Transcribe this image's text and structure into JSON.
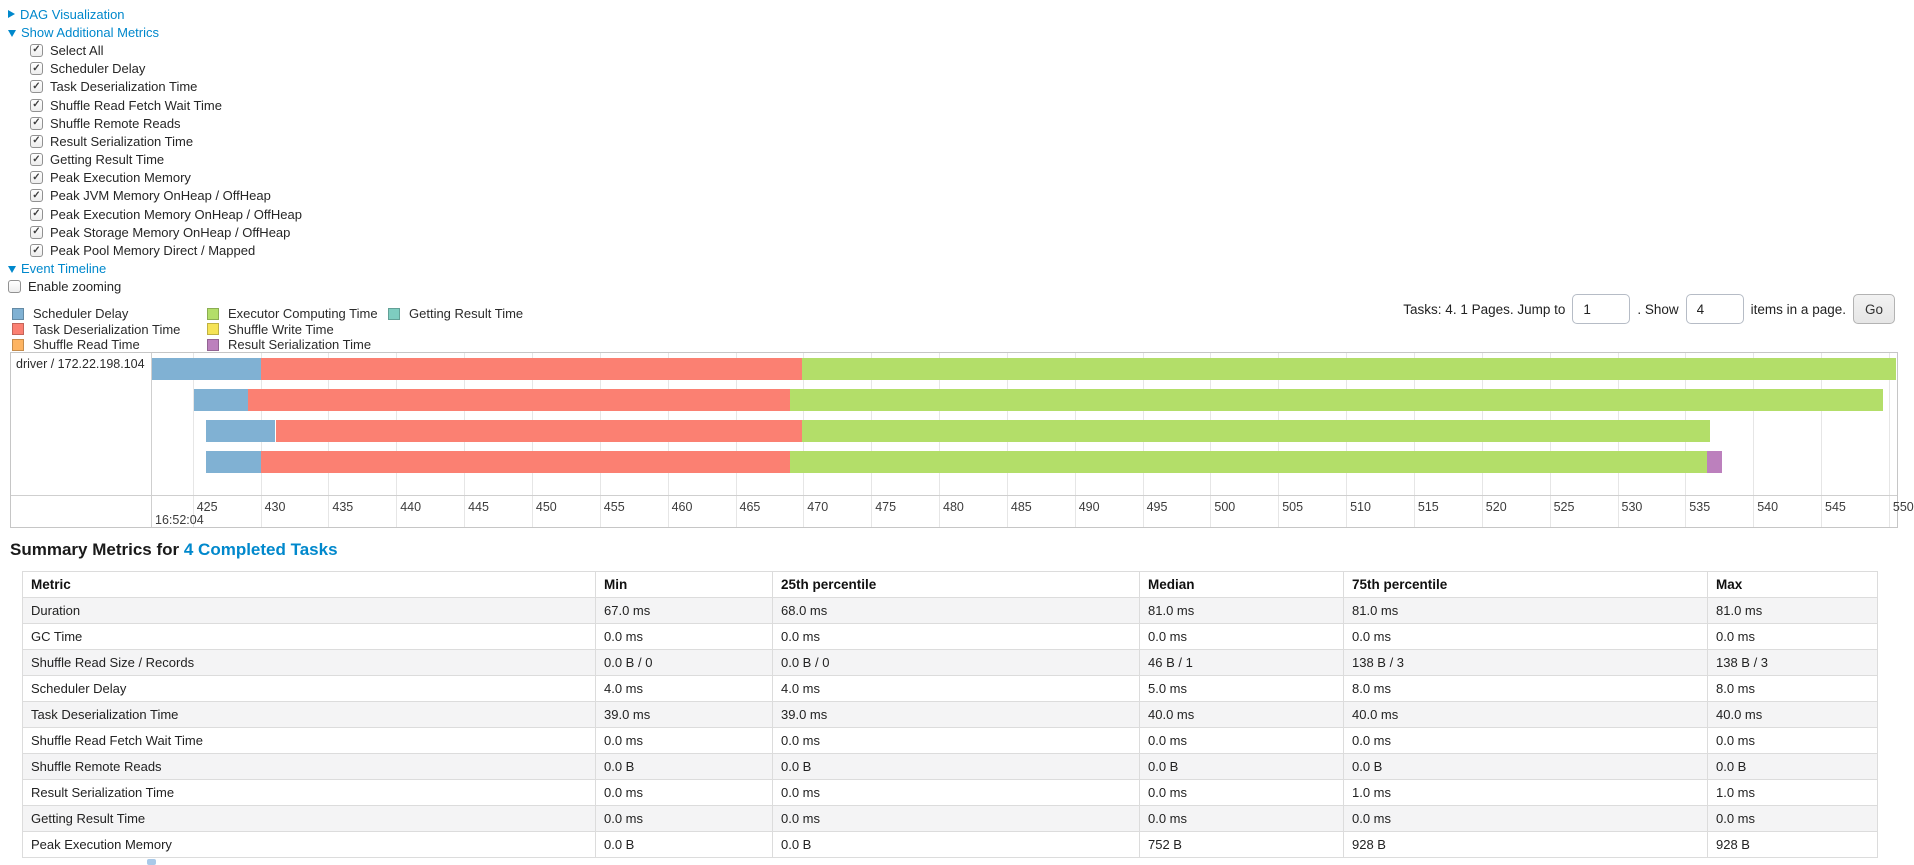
{
  "controls": {
    "dag_section": {
      "label": "DAG Visualization"
    },
    "metrics_section": {
      "label": "Show Additional Metrics"
    },
    "metric_checkboxes": [
      {
        "label": "Select All",
        "checked": true
      },
      {
        "label": "Scheduler Delay",
        "checked": true
      },
      {
        "label": "Task Deserialization Time",
        "checked": true
      },
      {
        "label": "Shuffle Read Fetch Wait Time",
        "checked": true
      },
      {
        "label": "Shuffle Remote Reads",
        "checked": true
      },
      {
        "label": "Result Serialization Time",
        "checked": true
      },
      {
        "label": "Getting Result Time",
        "checked": true
      },
      {
        "label": "Peak Execution Memory",
        "checked": true
      },
      {
        "label": "Peak JVM Memory OnHeap / OffHeap",
        "checked": true
      },
      {
        "label": "Peak Execution Memory OnHeap / OffHeap",
        "checked": true
      },
      {
        "label": "Peak Storage Memory OnHeap / OffHeap",
        "checked": true
      },
      {
        "label": "Peak Pool Memory Direct / Mapped",
        "checked": true
      }
    ],
    "event_timeline_section": {
      "label": "Event Timeline"
    },
    "enable_zooming": {
      "label": "Enable zooming",
      "checked": false
    }
  },
  "legend": {
    "columns": [
      [
        {
          "label": "Scheduler Delay",
          "color": "#80B1D3"
        },
        {
          "label": "Task Deserialization Time",
          "color": "#FB8072"
        },
        {
          "label": "Shuffle Read Time",
          "color": "#FDB462"
        }
      ],
      [
        {
          "label": "Executor Computing Time",
          "color": "#B3DE69"
        },
        {
          "label": "Shuffle Write Time",
          "color": "#F5E356"
        },
        {
          "label": "Result Serialization Time",
          "color": "#BC80BD"
        }
      ],
      [
        {
          "label": "Getting Result Time",
          "color": "#7ECDC0"
        }
      ]
    ]
  },
  "pagination": {
    "tasks_text": "Tasks: 4. 1 Pages. Jump to",
    "jump_value": "1",
    "show_text": ". Show",
    "show_value": "4",
    "items_text": "items in a page.",
    "go_label": "Go"
  },
  "chart_data": {
    "type": "timeline",
    "group_label": "driver / 172.22.198.104",
    "axis": {
      "min": 422.0,
      "max": 550.6,
      "tick_start": 425,
      "tick_end": 550,
      "tick_step": 5,
      "major_label": "16:52:04"
    },
    "colors": {
      "scheduler_delay": "#80B1D3",
      "task_deserialization": "#FB8072",
      "shuffle_read": "#FDB462",
      "executor_computing": "#B3DE69",
      "shuffle_write": "#F5E356",
      "result_serialization": "#BC80BD",
      "getting_result": "#7ECDC0"
    },
    "tasks": [
      {
        "segments": [
          {
            "type": "scheduler_delay",
            "start": 422.0,
            "end": 430.0
          },
          {
            "type": "task_deserialization",
            "start": 430.0,
            "end": 469.9
          },
          {
            "type": "executor_computing",
            "start": 469.9,
            "end": 550.5
          }
        ]
      },
      {
        "segments": [
          {
            "type": "scheduler_delay",
            "start": 425.1,
            "end": 429.1
          },
          {
            "type": "task_deserialization",
            "start": 429.1,
            "end": 469.0
          },
          {
            "type": "executor_computing",
            "start": 469.0,
            "end": 549.6
          }
        ]
      },
      {
        "segments": [
          {
            "type": "scheduler_delay",
            "start": 426.0,
            "end": 431.1
          },
          {
            "type": "task_deserialization",
            "start": 431.1,
            "end": 469.9
          },
          {
            "type": "executor_computing",
            "start": 469.9,
            "end": 536.8
          }
        ]
      },
      {
        "segments": [
          {
            "type": "scheduler_delay",
            "start": 426.0,
            "end": 430.0
          },
          {
            "type": "task_deserialization",
            "start": 430.0,
            "end": 469.0
          },
          {
            "type": "executor_computing",
            "start": 469.0,
            "end": 536.6
          },
          {
            "type": "result_serialization",
            "start": 536.6,
            "end": 537.7
          }
        ]
      }
    ]
  },
  "summary": {
    "title_prefix": "Summary Metrics for",
    "title_link": "4 Completed Tasks",
    "table": {
      "headers": [
        "Metric",
        "Min",
        "25th percentile",
        "Median",
        "75th percentile",
        "Max"
      ],
      "rows": [
        [
          "Duration",
          "67.0 ms",
          "68.0 ms",
          "81.0 ms",
          "81.0 ms",
          "81.0 ms"
        ],
        [
          "GC Time",
          "0.0 ms",
          "0.0 ms",
          "0.0 ms",
          "0.0 ms",
          "0.0 ms"
        ],
        [
          "Shuffle Read Size / Records",
          "0.0 B / 0",
          "0.0 B / 0",
          "46 B / 1",
          "138 B / 3",
          "138 B / 3"
        ],
        [
          "Scheduler Delay",
          "4.0 ms",
          "4.0 ms",
          "5.0 ms",
          "8.0 ms",
          "8.0 ms"
        ],
        [
          "Task Deserialization Time",
          "39.0 ms",
          "39.0 ms",
          "40.0 ms",
          "40.0 ms",
          "40.0 ms"
        ],
        [
          "Shuffle Read Fetch Wait Time",
          "0.0 ms",
          "0.0 ms",
          "0.0 ms",
          "0.0 ms",
          "0.0 ms"
        ],
        [
          "Shuffle Remote Reads",
          "0.0 B",
          "0.0 B",
          "0.0 B",
          "0.0 B",
          "0.0 B"
        ],
        [
          "Result Serialization Time",
          "0.0 ms",
          "0.0 ms",
          "0.0 ms",
          "1.0 ms",
          "1.0 ms"
        ],
        [
          "Getting Result Time",
          "0.0 ms",
          "0.0 ms",
          "0.0 ms",
          "0.0 ms",
          "0.0 ms"
        ],
        [
          "Peak Execution Memory",
          "0.0 B",
          "0.0 B",
          "752 B",
          "928 B",
          "928 B"
        ]
      ]
    }
  }
}
